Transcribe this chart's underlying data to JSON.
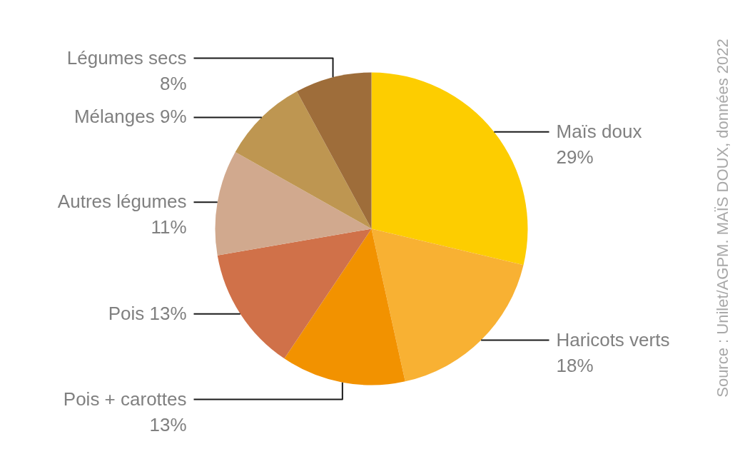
{
  "chart_data": {
    "type": "pie",
    "categories": [
      "Maïs doux",
      "Haricots verts",
      "Pois + carottes",
      "Pois",
      "Autres légumes",
      "Mélanges",
      "Légumes secs"
    ],
    "values": [
      29,
      18,
      13,
      13,
      11,
      9,
      8
    ],
    "colors": [
      "#fdcd00",
      "#f8b133",
      "#f29200",
      "#d07149",
      "#d1a98e",
      "#be9651",
      "#9e6d3a"
    ],
    "value_labels": [
      "29%",
      "18%",
      "13%",
      "13%",
      "11%",
      "9%",
      "8%"
    ],
    "annotations": [
      "Source : Unilet/AGPM. MAÏS DOUX, données 2022"
    ]
  }
}
